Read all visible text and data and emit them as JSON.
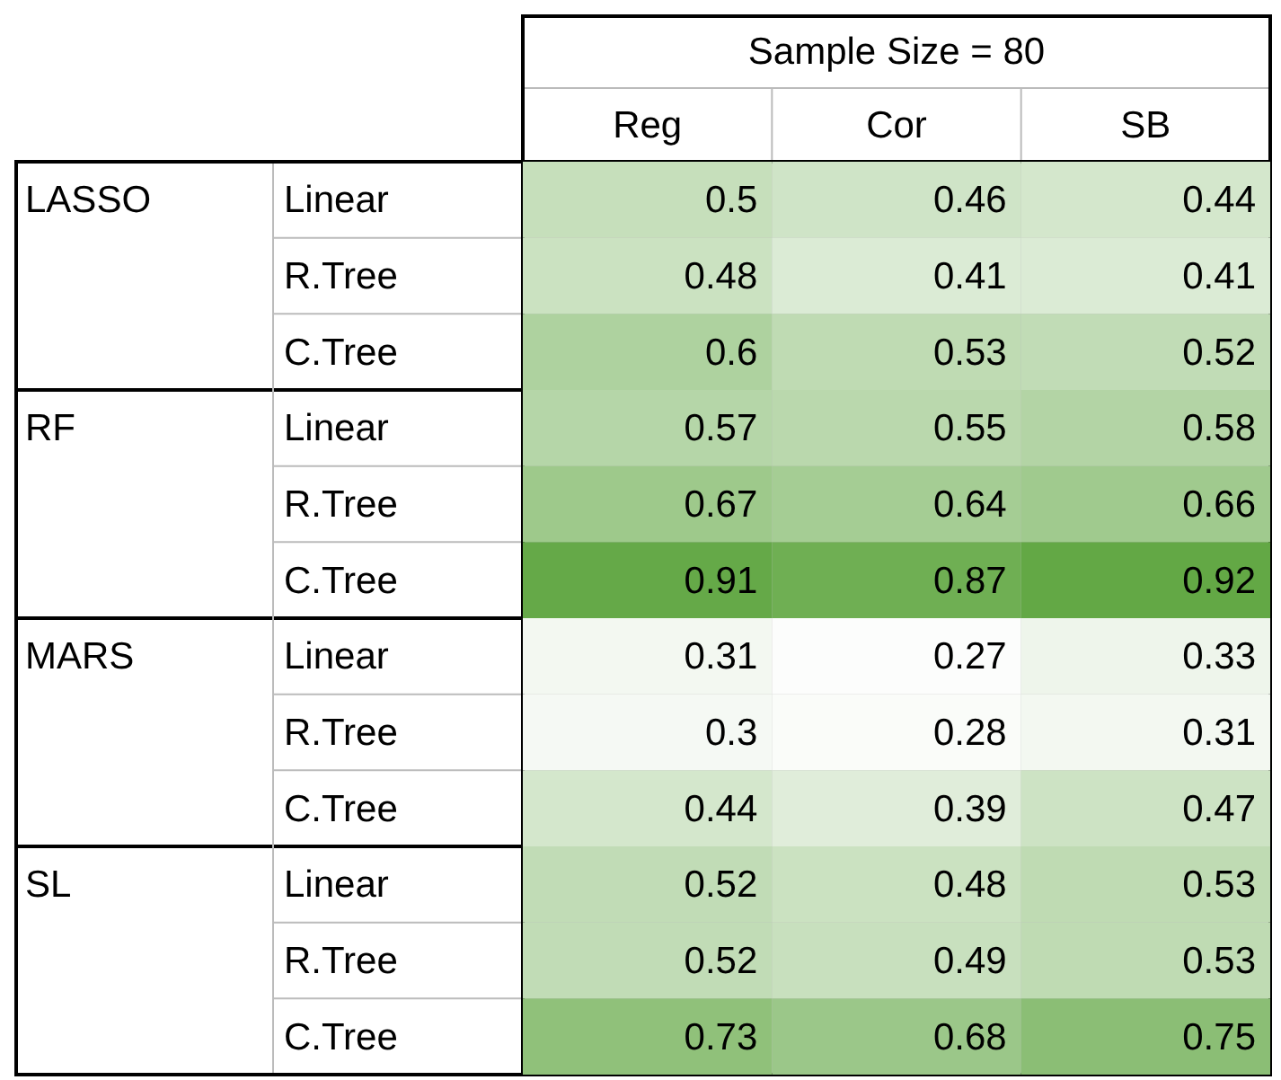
{
  "chart_data": {
    "type": "heatmap",
    "title": "Sample Size = 80",
    "data_labels": true,
    "categories": [
      "Reg",
      "Cor",
      "SB"
    ],
    "y_categories": [
      "Linear",
      "R.Tree",
      "C.Tree",
      "Linear",
      "R.Tree",
      "C.Tree",
      "Linear",
      "R.Tree",
      "C.Tree",
      "Linear",
      "R.Tree",
      "C.Tree"
    ],
    "y2_categories": [
      "LASSO",
      null,
      null,
      "RF",
      null,
      null,
      "MARS",
      null,
      null,
      "SL",
      null,
      null
    ],
    "cells": [
      [
        0.5,
        0.46,
        0.44
      ],
      [
        0.48,
        0.41,
        0.41
      ],
      [
        0.6,
        0.53,
        0.52
      ],
      [
        0.57,
        0.55,
        0.58
      ],
      [
        0.67,
        0.64,
        0.66
      ],
      [
        0.91,
        0.87,
        0.92
      ],
      [
        0.31,
        0.27,
        0.33
      ],
      [
        0.3,
        0.28,
        0.31
      ],
      [
        0.44,
        0.39,
        0.47
      ],
      [
        0.52,
        0.48,
        0.53
      ],
      [
        0.52,
        0.49,
        0.53
      ],
      [
        0.73,
        0.68,
        0.75
      ]
    ]
  }
}
